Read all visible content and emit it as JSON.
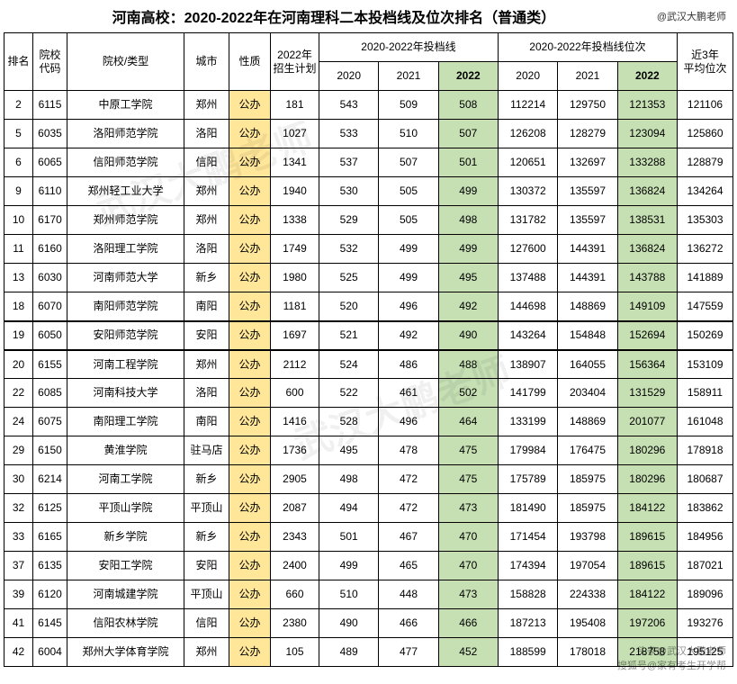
{
  "title": "河南高校：2020-2022年在河南理科二本投档线及位次排名（普通类）",
  "credit": "@武汉大鹏老师",
  "headers": {
    "rank": "排名",
    "code": "院校\n代码",
    "name": "院校/类型",
    "city": "城市",
    "nature": "性质",
    "plan": "2022年\n招生计划",
    "score_group": "2020-2022年投档线",
    "pos_group": "2020-2022年投档线位次",
    "avg": "近3年\n平均位次",
    "y2020": "2020",
    "y2021": "2021",
    "y2022": "2022"
  },
  "highlight_colors": {
    "yellow": "#ffe699",
    "green": "#c6e0b4"
  },
  "rows": [
    {
      "rank": "2",
      "code": "6115",
      "name": "中原工学院",
      "city": "郑州",
      "nature": "公办",
      "plan": "181",
      "s2020": "543",
      "s2021": "509",
      "s2022": "508",
      "p2020": "112214",
      "p2021": "129750",
      "p2022": "121353",
      "avg": "121106"
    },
    {
      "rank": "5",
      "code": "6035",
      "name": "洛阳师范学院",
      "city": "洛阳",
      "nature": "公办",
      "plan": "1027",
      "s2020": "533",
      "s2021": "510",
      "s2022": "507",
      "p2020": "126208",
      "p2021": "128279",
      "p2022": "123094",
      "avg": "125860"
    },
    {
      "rank": "6",
      "code": "6065",
      "name": "信阳师范学院",
      "city": "信阳",
      "nature": "公办",
      "plan": "1341",
      "s2020": "537",
      "s2021": "507",
      "s2022": "501",
      "p2020": "120651",
      "p2021": "132697",
      "p2022": "133288",
      "avg": "128879"
    },
    {
      "rank": "9",
      "code": "6110",
      "name": "郑州轻工业大学",
      "city": "郑州",
      "nature": "公办",
      "plan": "1940",
      "s2020": "530",
      "s2021": "505",
      "s2022": "499",
      "p2020": "130372",
      "p2021": "135597",
      "p2022": "136824",
      "avg": "134264"
    },
    {
      "rank": "10",
      "code": "6170",
      "name": "郑州师范学院",
      "city": "郑州",
      "nature": "公办",
      "plan": "1338",
      "s2020": "529",
      "s2021": "505",
      "s2022": "498",
      "p2020": "131782",
      "p2021": "135597",
      "p2022": "138531",
      "avg": "135303"
    },
    {
      "rank": "11",
      "code": "6160",
      "name": "洛阳理工学院",
      "city": "洛阳",
      "nature": "公办",
      "plan": "1749",
      "s2020": "532",
      "s2021": "499",
      "s2022": "499",
      "p2020": "127600",
      "p2021": "144391",
      "p2022": "136824",
      "avg": "136272"
    },
    {
      "rank": "13",
      "code": "6030",
      "name": "河南师范大学",
      "city": "新乡",
      "nature": "公办",
      "plan": "1980",
      "s2020": "525",
      "s2021": "499",
      "s2022": "495",
      "p2020": "137488",
      "p2021": "144391",
      "p2022": "143788",
      "avg": "141889"
    },
    {
      "rank": "18",
      "code": "6070",
      "name": "南阳师范学院",
      "city": "南阳",
      "nature": "公办",
      "plan": "1181",
      "s2020": "520",
      "s2021": "496",
      "s2022": "492",
      "p2020": "144698",
      "p2021": "148869",
      "p2022": "149109",
      "avg": "147559"
    },
    {
      "rank": "19",
      "code": "6050",
      "name": "安阳师范学院",
      "city": "安阳",
      "nature": "公办",
      "plan": "1697",
      "s2020": "521",
      "s2021": "492",
      "s2022": "490",
      "p2020": "143264",
      "p2021": "154848",
      "p2022": "152694",
      "avg": "150269"
    },
    {
      "rank": "20",
      "code": "6155",
      "name": "河南工程学院",
      "city": "郑州",
      "nature": "公办",
      "plan": "2112",
      "s2020": "524",
      "s2021": "486",
      "s2022": "488",
      "p2020": "138907",
      "p2021": "164055",
      "p2022": "156364",
      "avg": "153109"
    },
    {
      "rank": "22",
      "code": "6085",
      "name": "河南科技大学",
      "city": "洛阳",
      "nature": "公办",
      "plan": "600",
      "s2020": "522",
      "s2021": "461",
      "s2022": "502",
      "p2020": "141799",
      "p2021": "203404",
      "p2022": "131529",
      "avg": "158911"
    },
    {
      "rank": "24",
      "code": "6075",
      "name": "南阳理工学院",
      "city": "南阳",
      "nature": "公办",
      "plan": "1416",
      "s2020": "528",
      "s2021": "496",
      "s2022": "464",
      "p2020": "133199",
      "p2021": "148869",
      "p2022": "201077",
      "avg": "161048"
    },
    {
      "rank": "29",
      "code": "6150",
      "name": "黄淮学院",
      "city": "驻马店",
      "nature": "公办",
      "plan": "1736",
      "s2020": "495",
      "s2021": "478",
      "s2022": "475",
      "p2020": "179984",
      "p2021": "176475",
      "p2022": "180296",
      "avg": "178918"
    },
    {
      "rank": "30",
      "code": "6214",
      "name": "河南工学院",
      "city": "新乡",
      "nature": "公办",
      "plan": "2905",
      "s2020": "498",
      "s2021": "472",
      "s2022": "475",
      "p2020": "175789",
      "p2021": "185975",
      "p2022": "180296",
      "avg": "180687"
    },
    {
      "rank": "32",
      "code": "6125",
      "name": "平顶山学院",
      "city": "平顶山",
      "nature": "公办",
      "plan": "2087",
      "s2020": "494",
      "s2021": "472",
      "s2022": "473",
      "p2020": "181490",
      "p2021": "185975",
      "p2022": "184122",
      "avg": "183862"
    },
    {
      "rank": "33",
      "code": "6165",
      "name": "新乡学院",
      "city": "新乡",
      "nature": "公办",
      "plan": "2343",
      "s2020": "501",
      "s2021": "467",
      "s2022": "470",
      "p2020": "171454",
      "p2021": "193798",
      "p2022": "189615",
      "avg": "184956"
    },
    {
      "rank": "37",
      "code": "6135",
      "name": "安阳工学院",
      "city": "安阳",
      "nature": "公办",
      "plan": "2400",
      "s2020": "499",
      "s2021": "465",
      "s2022": "470",
      "p2020": "174394",
      "p2021": "197054",
      "p2022": "189615",
      "avg": "187021"
    },
    {
      "rank": "39",
      "code": "6120",
      "name": "河南城建学院",
      "city": "平顶山",
      "nature": "公办",
      "plan": "660",
      "s2020": "510",
      "s2021": "448",
      "s2022": "473",
      "p2020": "158828",
      "p2021": "224338",
      "p2022": "184122",
      "avg": "189096"
    },
    {
      "rank": "41",
      "code": "6145",
      "name": "信阳农林学院",
      "city": "信阳",
      "nature": "公办",
      "plan": "2380",
      "s2020": "490",
      "s2021": "466",
      "s2022": "466",
      "p2020": "187213",
      "p2021": "195408",
      "p2022": "197206",
      "avg": "193276"
    },
    {
      "rank": "42",
      "code": "6004",
      "name": "郑州大学体育学院",
      "city": "郑州",
      "nature": "公办",
      "plan": "105",
      "s2020": "489",
      "s2021": "477",
      "s2022": "452",
      "p2020": "188599",
      "p2021": "178018",
      "p2022": "218758",
      "avg": "195125"
    }
  ],
  "watermark": "武汉大鹏老师",
  "footer1": "头条@武汉大鹏老师",
  "footer2": "搜狐号@家有考生开学帮"
}
